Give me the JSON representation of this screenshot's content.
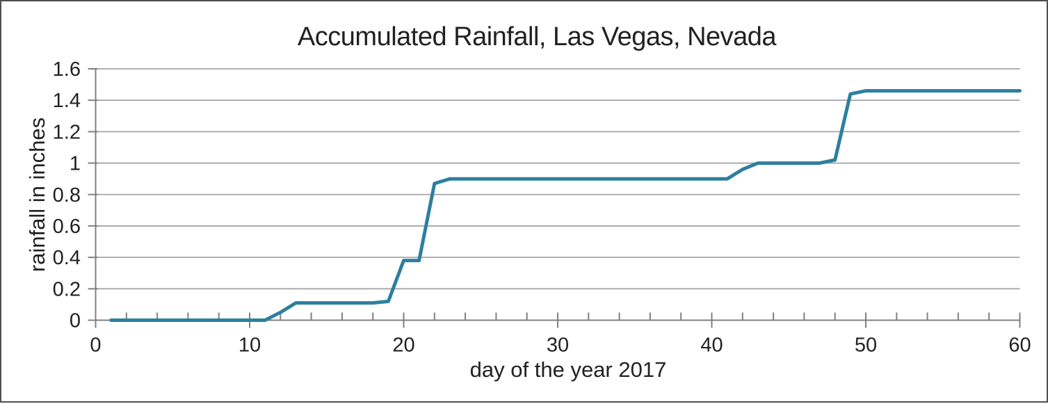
{
  "chart_data": {
    "type": "line",
    "title": "Accumulated Rainfall, Las Vegas, Nevada",
    "xlabel": "day of the year 2017",
    "ylabel": "rainfall in inches",
    "legend": "none",
    "grid": "horizontal",
    "xlim": [
      0,
      60
    ],
    "ylim": [
      0,
      1.6
    ],
    "xticks": [
      0,
      10,
      20,
      30,
      40,
      50,
      60
    ],
    "xtick_labels": [
      "0",
      "10",
      "20",
      "30",
      "40",
      "50",
      "60"
    ],
    "x_minor_tick_step": 2,
    "yticks": [
      0,
      0.2,
      0.4,
      0.6,
      0.8,
      1,
      1.2,
      1.4,
      1.6
    ],
    "ytick_labels": [
      "0",
      "0.2",
      "0.4",
      "0.6",
      "0.8",
      "1",
      "1.2",
      "1.4",
      "1.6"
    ],
    "x": [
      1,
      2,
      3,
      4,
      5,
      6,
      7,
      8,
      9,
      10,
      11,
      12,
      13,
      14,
      15,
      16,
      17,
      18,
      19,
      20,
      21,
      22,
      23,
      24,
      25,
      26,
      27,
      28,
      29,
      30,
      31,
      32,
      33,
      34,
      35,
      36,
      37,
      38,
      39,
      40,
      41,
      42,
      43,
      44,
      45,
      46,
      47,
      48,
      49,
      50,
      51,
      52,
      53,
      54,
      55,
      56,
      57,
      58,
      59,
      60
    ],
    "y": [
      0,
      0,
      0,
      0,
      0,
      0,
      0,
      0,
      0,
      0,
      0,
      0.05,
      0.11,
      0.11,
      0.11,
      0.11,
      0.11,
      0.11,
      0.12,
      0.38,
      0.38,
      0.87,
      0.9,
      0.9,
      0.9,
      0.9,
      0.9,
      0.9,
      0.9,
      0.9,
      0.9,
      0.9,
      0.9,
      0.9,
      0.9,
      0.9,
      0.9,
      0.9,
      0.9,
      0.9,
      0.9,
      0.96,
      1.0,
      1.0,
      1.0,
      1.0,
      1.0,
      1.02,
      1.44,
      1.46,
      1.46,
      1.46,
      1.46,
      1.46,
      1.46,
      1.46,
      1.46,
      1.46,
      1.46,
      1.46
    ],
    "colors": {
      "line": "#2e7f9e",
      "grid": "#a6a6a6",
      "axis": "#808080",
      "text": "#212121"
    }
  }
}
